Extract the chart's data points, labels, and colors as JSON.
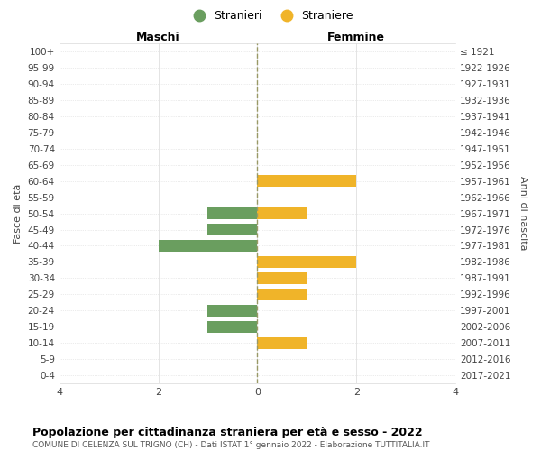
{
  "age_groups": [
    "100+",
    "95-99",
    "90-94",
    "85-89",
    "80-84",
    "75-79",
    "70-74",
    "65-69",
    "60-64",
    "55-59",
    "50-54",
    "45-49",
    "40-44",
    "35-39",
    "30-34",
    "25-29",
    "20-24",
    "15-19",
    "10-14",
    "5-9",
    "0-4"
  ],
  "birth_years": [
    "≤ 1921",
    "1922-1926",
    "1927-1931",
    "1932-1936",
    "1937-1941",
    "1942-1946",
    "1947-1951",
    "1952-1956",
    "1957-1961",
    "1962-1966",
    "1967-1971",
    "1972-1976",
    "1977-1981",
    "1982-1986",
    "1987-1991",
    "1992-1996",
    "1997-2001",
    "2002-2006",
    "2007-2011",
    "2012-2016",
    "2017-2021"
  ],
  "maschi": [
    0,
    0,
    0,
    0,
    0,
    0,
    0,
    0,
    0,
    0,
    -1,
    -1,
    -2,
    0,
    0,
    0,
    -1,
    -1,
    0,
    0,
    0
  ],
  "femmine": [
    0,
    0,
    0,
    0,
    0,
    0,
    0,
    0,
    2,
    0,
    1,
    0,
    0,
    2,
    1,
    1,
    0,
    0,
    1,
    0,
    0
  ],
  "maschi_color": "#6a9e5f",
  "femmine_color": "#f0b429",
  "title": "Popolazione per cittadinanza straniera per età e sesso - 2022",
  "subtitle": "COMUNE DI CELENZA SUL TRIGNO (CH) - Dati ISTAT 1° gennaio 2022 - Elaborazione TUTTITALIA.IT",
  "legend_maschi": "Stranieri",
  "legend_femmine": "Straniere",
  "xlabel_left": "Maschi",
  "xlabel_right": "Femmine",
  "ylabel_left": "Fasce di età",
  "ylabel_right": "Anni di nascita",
  "xlim": [
    -4,
    4
  ],
  "xticks": [
    -4,
    -2,
    0,
    2,
    4
  ],
  "xticklabels": [
    "4",
    "2",
    "0",
    "2",
    "4"
  ],
  "background_color": "#ffffff",
  "grid_color": "#d9d9d9"
}
